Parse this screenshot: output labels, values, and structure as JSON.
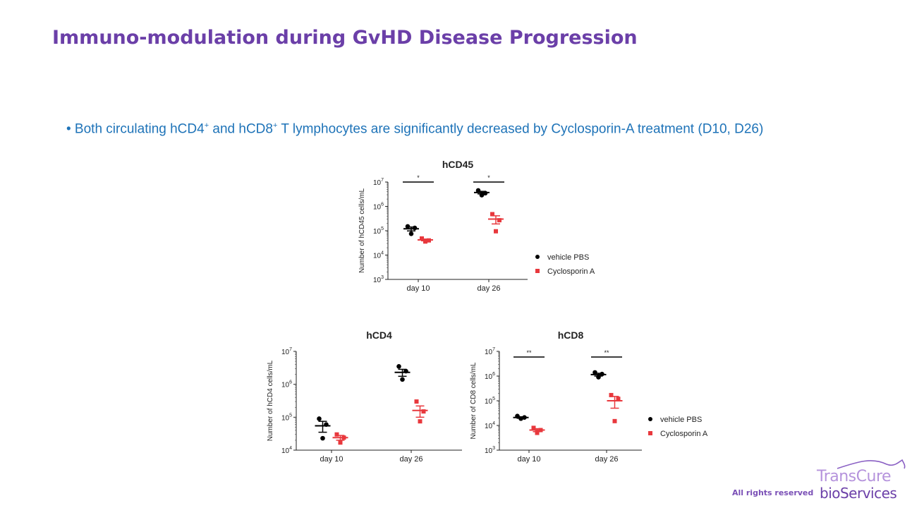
{
  "slide": {
    "title": "Immuno-modulation during GvHD Disease Progression",
    "bullet_prefix": "• Both circulating hCD4",
    "bullet_sup1": "+",
    "bullet_mid": " and hCD8",
    "bullet_sup2": "+",
    "bullet_suffix": " T lymphocytes are significantly decreased by Cyclosporin-A treatment (D10, D26)",
    "footer_rights": "All rights reserved",
    "logo_line1": "TransCure",
    "logo_line2": "bioServices"
  },
  "colors": {
    "title": "#6b3fa8",
    "bullet": "#1e73b8",
    "vehicle": "#000000",
    "cyclosporin": "#e8383d"
  },
  "chart_data": [
    {
      "id": "hcd45",
      "type": "scatter",
      "title": "hCD45",
      "ylabel": "Number of hCD45 cells/mL",
      "yscale": "log",
      "ylim": [
        1000,
        10000000
      ],
      "yticks": [
        {
          "value": 1000,
          "base": "10",
          "exp": "3"
        },
        {
          "value": 10000,
          "base": "10",
          "exp": "4"
        },
        {
          "value": 100000,
          "base": "10",
          "exp": "5"
        },
        {
          "value": 1000000,
          "base": "10",
          "exp": "6"
        },
        {
          "value": 10000000,
          "base": "10",
          "exp": "7"
        }
      ],
      "categories": [
        "day 10",
        "day 26"
      ],
      "legend": {
        "placement": "right",
        "entries": [
          "vehicle PBS",
          "Cyclosporin A"
        ]
      },
      "series": [
        {
          "name": "vehicle PBS",
          "marker": "circle",
          "points": [
            [
              150000,
              130000,
              75000
            ],
            [
              4500000,
              3500000,
              2900000
            ]
          ],
          "means": [
            120000,
            3700000
          ],
          "sems": [
            22000,
            450000
          ]
        },
        {
          "name": "Cyclosporin A",
          "marker": "square",
          "points": [
            [
              48000,
              40000,
              36000
            ],
            [
              480000,
              270000,
              95000
            ]
          ],
          "means": [
            42000,
            300000
          ],
          "sems": [
            3500,
            110000
          ]
        }
      ],
      "significance": [
        {
          "category": "day 10",
          "label": "*"
        },
        {
          "category": "day 26",
          "label": "*"
        }
      ]
    },
    {
      "id": "hcd4",
      "type": "scatter",
      "title": "hCD4",
      "ylabel": "Number of hCD4 cells/mL",
      "yscale": "log",
      "ylim": [
        10000,
        10000000
      ],
      "yticks": [
        {
          "value": 10000,
          "base": "10",
          "exp": "4"
        },
        {
          "value": 100000,
          "base": "10",
          "exp": "5"
        },
        {
          "value": 1000000,
          "base": "10",
          "exp": "6"
        },
        {
          "value": 10000000,
          "base": "10",
          "exp": "7"
        }
      ],
      "categories": [
        "day 10",
        "day 26"
      ],
      "series": [
        {
          "name": "vehicle PBS",
          "marker": "circle",
          "points": [
            [
              90000,
              60000,
              23000
            ],
            [
              3500000,
              2500000,
              1400000
            ]
          ],
          "means": [
            55000,
            2300000
          ],
          "sems": [
            20000,
            550000
          ]
        },
        {
          "name": "Cyclosporin A",
          "marker": "square",
          "points": [
            [
              30000,
              24000,
              17000
            ],
            [
              300000,
              150000,
              75000
            ]
          ],
          "means": [
            24000,
            160000
          ],
          "sems": [
            4000,
            60000
          ]
        }
      ],
      "significance": []
    },
    {
      "id": "hcd8",
      "type": "scatter",
      "title": "hCD8",
      "ylabel": "Number of CD8 cells/mL",
      "yscale": "log",
      "ylim": [
        1000,
        10000000
      ],
      "yticks": [
        {
          "value": 1000,
          "base": "10",
          "exp": "3"
        },
        {
          "value": 10000,
          "base": "10",
          "exp": "4"
        },
        {
          "value": 100000,
          "base": "10",
          "exp": "5"
        },
        {
          "value": 1000000,
          "base": "10",
          "exp": "6"
        },
        {
          "value": 10000000,
          "base": "10",
          "exp": "7"
        }
      ],
      "categories": [
        "day 10",
        "day 26"
      ],
      "legend": {
        "placement": "right",
        "entries": [
          "vehicle PBS",
          "Cyclosporin A"
        ]
      },
      "series": [
        {
          "name": "vehicle PBS",
          "marker": "circle",
          "points": [
            [
              24000,
              21000,
              19000
            ],
            [
              1400000,
              1200000,
              900000
            ]
          ],
          "means": [
            21000,
            1150000
          ],
          "sems": [
            1500,
            150000
          ]
        },
        {
          "name": "Cyclosporin A",
          "marker": "square",
          "points": [
            [
              8000,
              6500,
              5000
            ],
            [
              170000,
              120000,
              15000
            ]
          ],
          "means": [
            6500,
            100000
          ],
          "sems": [
            900,
            50000
          ]
        }
      ],
      "significance": [
        {
          "category": "day 10",
          "label": "**"
        },
        {
          "category": "day 26",
          "label": "**"
        }
      ]
    }
  ]
}
